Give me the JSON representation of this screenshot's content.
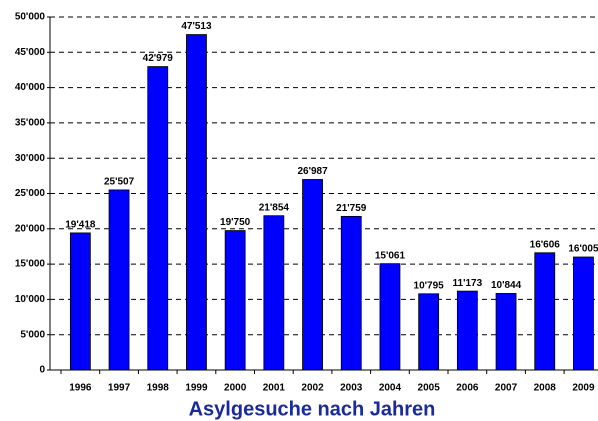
{
  "chart_data": {
    "type": "bar",
    "title": "Asylgesuche nach Jahren",
    "categories": [
      "1996",
      "1997",
      "1998",
      "1999",
      "2000",
      "2001",
      "2002",
      "2003",
      "2004",
      "2005",
      "2006",
      "2007",
      "2008",
      "2009"
    ],
    "values": [
      19418,
      25507,
      42979,
      47513,
      19750,
      21854,
      26987,
      21759,
      15061,
      10795,
      11173,
      10844,
      16606,
      16005
    ],
    "value_labels": [
      "19'418",
      "25'507",
      "42'979",
      "47'513",
      "19'750",
      "21'854",
      "26'987",
      "21'759",
      "15'061",
      "10'795",
      "11'173",
      "10'844",
      "16'606",
      "16'005"
    ],
    "color": "#0000ff",
    "ylim": [
      0,
      50000
    ],
    "yticks": [
      0,
      {
        "value": 5000,
        "label": "5'000"
      },
      {
        "value": 10000,
        "label": "10'000"
      },
      {
        "value": 15000,
        "label": "15'000"
      },
      {
        "value": 20000,
        "label": "20'000"
      },
      {
        "value": 25000,
        "label": "25'000"
      },
      {
        "value": 30000,
        "label": "30'000"
      },
      {
        "value": 35000,
        "label": "35'000"
      },
      {
        "value": 40000,
        "label": "40'000"
      },
      {
        "value": 45000,
        "label": "45'000"
      },
      {
        "value": 50000,
        "label": "50'000"
      }
    ],
    "grid": true
  }
}
